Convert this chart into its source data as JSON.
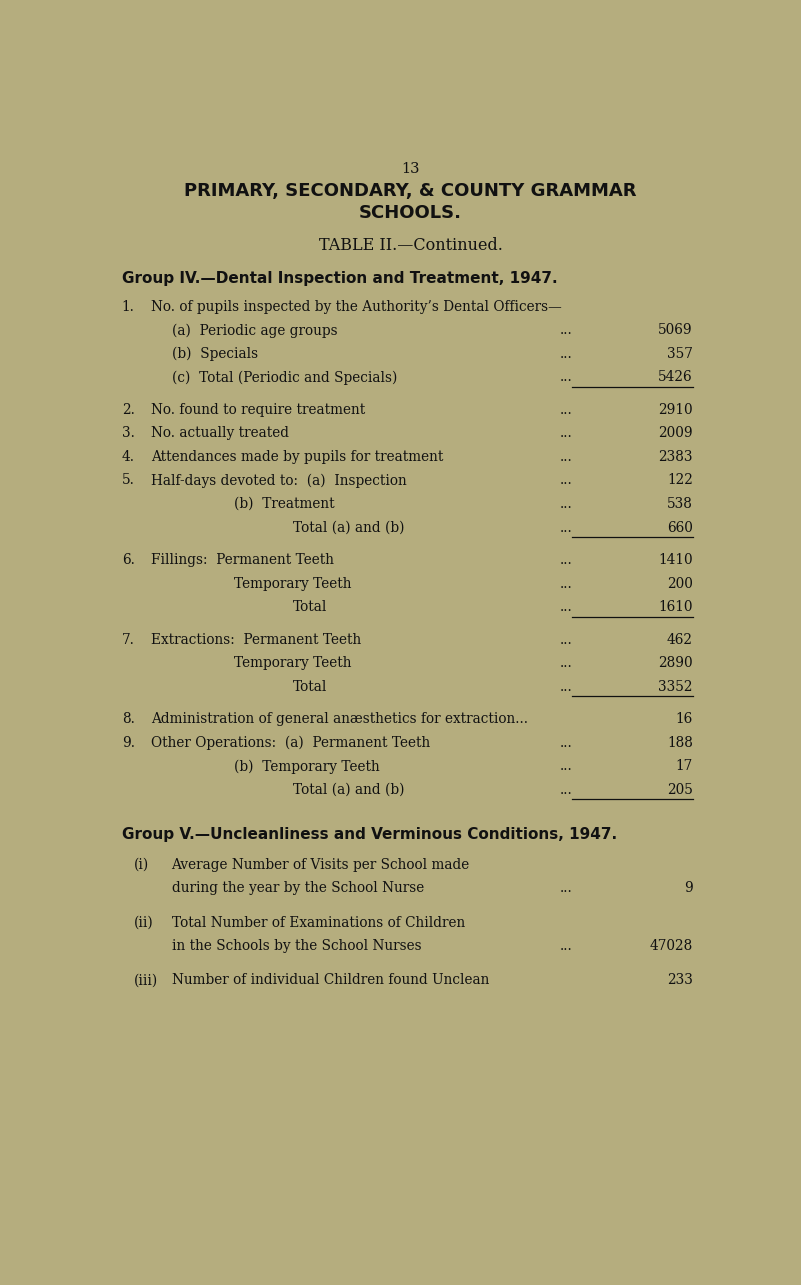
{
  "bg_color": "#b5ad7e",
  "text_color": "#111111",
  "page_number": "13",
  "title_line1": "PRIMARY, SECONDARY, & COUNTY GRAMMAR",
  "title_line2": "SCHOOLS.",
  "subtitle": "TABLE II.—Continued.",
  "group4_heading": "Group IV.—Dental Inspection and Treatment, 1947.",
  "group5_heading": "Group V.—Uncleanliness and Verminous Conditions, 1947.",
  "lines": [
    {
      "num": "1.",
      "indent": 0,
      "text": "No. of pupils inspected by the Authority’s Dental Officers—",
      "dots": "",
      "value": "",
      "sep_after": false
    },
    {
      "num": "",
      "indent": 1,
      "text": "(a)  Periodic age groups",
      "dots": "...",
      "value": "5069",
      "sep_after": false
    },
    {
      "num": "",
      "indent": 1,
      "text": "(b)  Specials",
      "dots": "...",
      "value": "357",
      "sep_after": false
    },
    {
      "num": "",
      "indent": 1,
      "text": "(c)  Total (Periodic and Specials)",
      "dots": "...",
      "value": "5426",
      "sep_after": true
    },
    {
      "num": "2.",
      "indent": 0,
      "text": "No. found to require treatment",
      "dots": "...",
      "value": "2910",
      "sep_after": false
    },
    {
      "num": "3.",
      "indent": 0,
      "text": "No. actually treated",
      "dots": "...",
      "value": "2009",
      "sep_after": false
    },
    {
      "num": "4.",
      "indent": 0,
      "text": "Attendances made by pupils for treatment",
      "dots": "...",
      "value": "2383",
      "sep_after": false
    },
    {
      "num": "5.",
      "indent": 0,
      "text": "Half-days devoted to:  (a)  Inspection",
      "dots": "...",
      "value": "122",
      "sep_after": false
    },
    {
      "num": "",
      "indent": 2,
      "text": "(b)  Treatment",
      "dots": "...",
      "value": "538",
      "sep_after": false
    },
    {
      "num": "",
      "indent": 3,
      "text": "Total (a) and (b)",
      "dots": "...",
      "value": "660",
      "sep_after": true
    },
    {
      "num": "6.",
      "indent": 0,
      "text": "Fillings:  Permanent Teeth",
      "dots": "...",
      "value": "1410",
      "sep_after": false
    },
    {
      "num": "",
      "indent": 2,
      "text": "Temporary Teeth",
      "dots": "...",
      "value": "200",
      "sep_after": false
    },
    {
      "num": "",
      "indent": 3,
      "text": "Total",
      "dots": "...",
      "value": "1610",
      "sep_after": true
    },
    {
      "num": "7.",
      "indent": 0,
      "text": "Extractions:  Permanent Teeth",
      "dots": "...",
      "value": "462",
      "sep_after": false
    },
    {
      "num": "",
      "indent": 2,
      "text": "Temporary Teeth",
      "dots": "...",
      "value": "2890",
      "sep_after": false
    },
    {
      "num": "",
      "indent": 3,
      "text": "Total",
      "dots": "...",
      "value": "3352",
      "sep_after": true
    },
    {
      "num": "8.",
      "indent": 0,
      "text": "Administration of general anæsthetics for extraction...",
      "dots": "",
      "value": "16",
      "sep_after": false
    },
    {
      "num": "9.",
      "indent": 0,
      "text": "Other Operations:  (a)  Permanent Teeth",
      "dots": "...",
      "value": "188",
      "sep_after": false
    },
    {
      "num": "",
      "indent": 2,
      "text": "(b)  Temporary Teeth",
      "dots": "...",
      "value": "17",
      "sep_after": false
    },
    {
      "num": "",
      "indent": 3,
      "text": "Total (a) and (b)",
      "dots": "...",
      "value": "205",
      "sep_after": true
    }
  ],
  "group5_lines": [
    {
      "num": "(i)",
      "text1": "Average Number of Visits per School made",
      "text2": "during the year by the School Nurse",
      "dots": "...",
      "value": "9"
    },
    {
      "num": "(ii)",
      "text1": "Total Number of Examinations of Children",
      "text2": "in the Schools by the School Nurses",
      "dots": "...",
      "value": "47028"
    },
    {
      "num": "(iii)",
      "text1": "Number of individual Children found Unclean",
      "text2": "",
      "dots": "",
      "value": "233"
    }
  ],
  "font_size_title": 13.0,
  "font_size_heading": 11.0,
  "font_size_body": 9.8,
  "font_size_small": 9.5
}
